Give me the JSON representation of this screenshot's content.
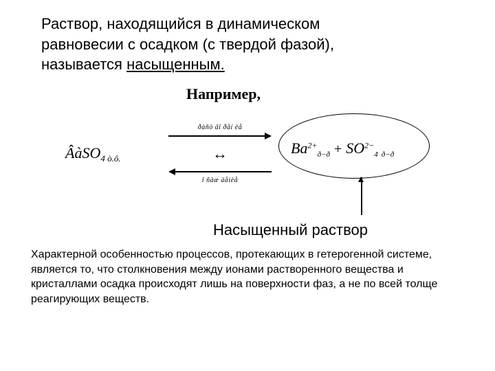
{
  "title": {
    "line1": "Раствор, находящийся в динамическом",
    "line2": "равновесии с осадком (с твердой фазой),",
    "line3_prefix": "называется ",
    "line3_underlined": "насыщенным."
  },
  "example_label": "Например,",
  "equation": {
    "left_formula_main": "ÂàSO",
    "left_formula_sub": "4 ò.ô.",
    "arrow_top_label": "ðàñò âî ðåí èå",
    "equilibrium_symbol": "↔",
    "arrow_bottom_label": "î ñàæ äåíèå",
    "right_ion1": "Ba",
    "right_ion1_sup": "2+",
    "right_ion1_sub": "ð−ð",
    "plus": "+",
    "right_ion2": "SO",
    "right_ion2_sup": "2−",
    "right_ion2_sub1": "4",
    "right_ion2_sub2": "ð−ð"
  },
  "saturated_label": "Насыщенный раствор",
  "body_text": "Характерной особенностью процессов, протекающих в гетерогенной системе, является то, что столкновения между ионами растворенного вещества и кристаллами осадка происходят лишь на поверхности фаз, а не по всей толще реагирующих веществ.",
  "colors": {
    "background": "#ffffff",
    "text": "#000000",
    "border": "#000000"
  },
  "fonts": {
    "body": "Verdana, Arial, sans-serif",
    "formula": "Times New Roman, serif",
    "title_size": 22,
    "body_size": 16,
    "example_size": 22
  }
}
